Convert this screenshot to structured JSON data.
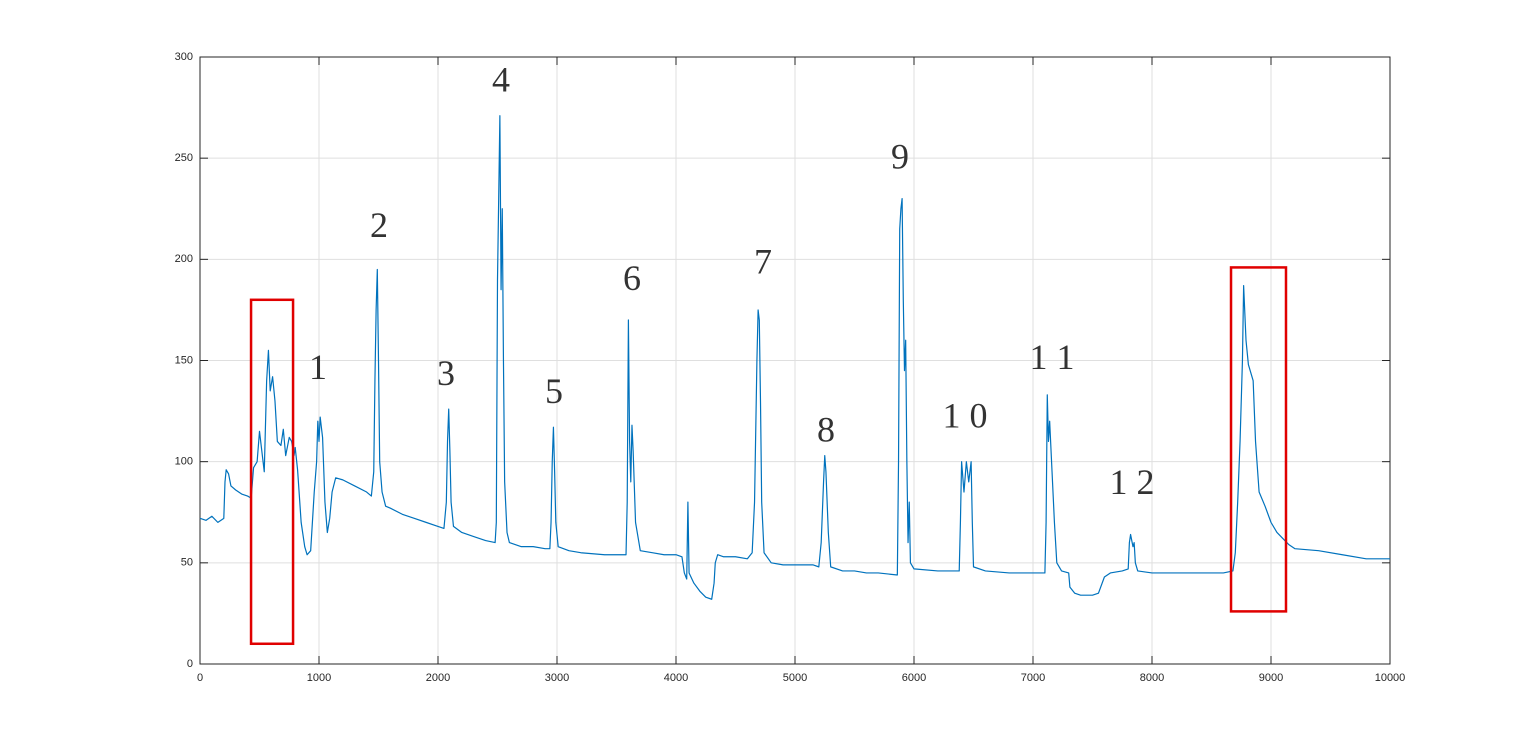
{
  "chart_data": {
    "type": "line",
    "x": [
      0,
      50,
      100,
      150,
      200,
      210,
      220,
      240,
      260,
      300,
      350,
      400,
      430,
      450,
      480,
      500,
      520,
      540,
      560,
      575,
      590,
      610,
      630,
      650,
      680,
      700,
      720,
      750,
      770,
      790,
      800,
      820,
      850,
      880,
      900,
      930,
      960,
      980,
      990,
      1000,
      1010,
      1030,
      1050,
      1070,
      1090,
      1110,
      1140,
      1200,
      1300,
      1400,
      1440,
      1460,
      1470,
      1480,
      1490,
      1500,
      1510,
      1530,
      1560,
      1600,
      1700,
      1800,
      1900,
      2000,
      2050,
      2070,
      2080,
      2090,
      2100,
      2110,
      2130,
      2200,
      2300,
      2400,
      2480,
      2490,
      2500,
      2510,
      2520,
      2530,
      2540,
      2550,
      2560,
      2580,
      2600,
      2700,
      2800,
      2900,
      2940,
      2950,
      2960,
      2970,
      2980,
      2990,
      3010,
      3100,
      3200,
      3400,
      3550,
      3580,
      3590,
      3600,
      3610,
      3620,
      3630,
      3640,
      3660,
      3700,
      3800,
      3900,
      4000,
      4050,
      4070,
      4090,
      4100,
      4110,
      4150,
      4200,
      4250,
      4300,
      4320,
      4330,
      4350,
      4400,
      4500,
      4600,
      4640,
      4660,
      4680,
      4690,
      4700,
      4710,
      4720,
      4740,
      4800,
      4900,
      5000,
      5150,
      5200,
      5220,
      5240,
      5250,
      5260,
      5280,
      5300,
      5400,
      5500,
      5600,
      5700,
      5860,
      5870,
      5880,
      5890,
      5900,
      5910,
      5920,
      5930,
      5940,
      5950,
      5960,
      5970,
      6000,
      6200,
      6380,
      6390,
      6400,
      6420,
      6440,
      6460,
      6480,
      6490,
      6500,
      6600,
      6800,
      7000,
      7100,
      7110,
      7120,
      7130,
      7140,
      7160,
      7180,
      7200,
      7240,
      7300,
      7310,
      7350,
      7400,
      7500,
      7550,
      7600,
      7650,
      7750,
      7800,
      7810,
      7820,
      7840,
      7850,
      7860,
      7880,
      8000,
      8200,
      8400,
      8600,
      8680,
      8700,
      8720,
      8740,
      8760,
      8770,
      8790,
      8810,
      8850,
      8870,
      8900,
      8950,
      9000,
      9050,
      9100,
      9150,
      9200,
      9400,
      9600,
      9800,
      10000
    ],
    "values": [
      72,
      71,
      73,
      70,
      72,
      90,
      96,
      94,
      88,
      86,
      84,
      83,
      82,
      97,
      100,
      115,
      105,
      95,
      140,
      155,
      135,
      142,
      130,
      110,
      108,
      116,
      103,
      112,
      110,
      103,
      107,
      96,
      70,
      58,
      54,
      56,
      85,
      100,
      120,
      110,
      122,
      112,
      80,
      65,
      72,
      85,
      92,
      91,
      88,
      85,
      83,
      95,
      140,
      175,
      195,
      150,
      100,
      85,
      78,
      77,
      74,
      72,
      70,
      68,
      67,
      80,
      110,
      126,
      105,
      80,
      68,
      65,
      63,
      61,
      60,
      70,
      190,
      230,
      271,
      185,
      225,
      150,
      90,
      65,
      60,
      58,
      58,
      57,
      57,
      70,
      100,
      117,
      95,
      70,
      58,
      56,
      55,
      54,
      54,
      54,
      80,
      170,
      110,
      90,
      118,
      105,
      70,
      56,
      55,
      54,
      54,
      53,
      45,
      42,
      80,
      45,
      40,
      36,
      33,
      32,
      40,
      50,
      54,
      53,
      53,
      52,
      55,
      80,
      150,
      175,
      170,
      130,
      80,
      55,
      50,
      49,
      49,
      49,
      48,
      60,
      90,
      103,
      95,
      65,
      48,
      46,
      46,
      45,
      45,
      44,
      100,
      215,
      225,
      230,
      180,
      145,
      160,
      100,
      60,
      80,
      50,
      47,
      46,
      46,
      70,
      100,
      85,
      100,
      90,
      100,
      70,
      48,
      46,
      45,
      45,
      45,
      70,
      133,
      110,
      120,
      95,
      70,
      50,
      46,
      45,
      38,
      35,
      34,
      34,
      35,
      43,
      45,
      46,
      47,
      60,
      64,
      58,
      60,
      50,
      46,
      45,
      45,
      45,
      45,
      46,
      55,
      80,
      110,
      150,
      187,
      160,
      148,
      140,
      110,
      85,
      78,
      70,
      65,
      62,
      59,
      57,
      56,
      54,
      52,
      52
    ],
    "color": "#0072bd",
    "xlim": [
      0,
      10000
    ],
    "xticks": [
      0,
      1000,
      2000,
      3000,
      4000,
      5000,
      6000,
      7000,
      8000,
      9000,
      10000
    ],
    "ylim": [
      0,
      300
    ],
    "yticks": [
      0,
      50,
      100,
      150,
      200,
      250,
      300
    ],
    "grid": true,
    "annotations": [
      {
        "text": "1",
        "x": 992,
        "y": 145
      },
      {
        "text": "2",
        "x": 1504,
        "y": 215
      },
      {
        "text": "3",
        "x": 2067,
        "y": 142
      },
      {
        "text": "4",
        "x": 2529,
        "y": 287
      },
      {
        "text": "5",
        "x": 2975,
        "y": 133
      },
      {
        "text": "6",
        "x": 3630,
        "y": 189
      },
      {
        "text": "7",
        "x": 4731,
        "y": 197
      },
      {
        "text": "8",
        "x": 5261,
        "y": 114
      },
      {
        "text": "9",
        "x": 5882,
        "y": 249
      },
      {
        "text": "1 0",
        "x": 6429,
        "y": 121
      },
      {
        "text": "1 1",
        "x": 7160,
        "y": 150
      },
      {
        "text": "1 2",
        "x": 7832,
        "y": 88
      }
    ],
    "boxes": [
      {
        "xlim": [
          429,
          782
        ],
        "ylim": [
          10,
          180
        ],
        "color": "#e00000"
      },
      {
        "xlim": [
          8664,
          9126
        ],
        "ylim": [
          26,
          196
        ],
        "color": "#e00000"
      }
    ]
  }
}
